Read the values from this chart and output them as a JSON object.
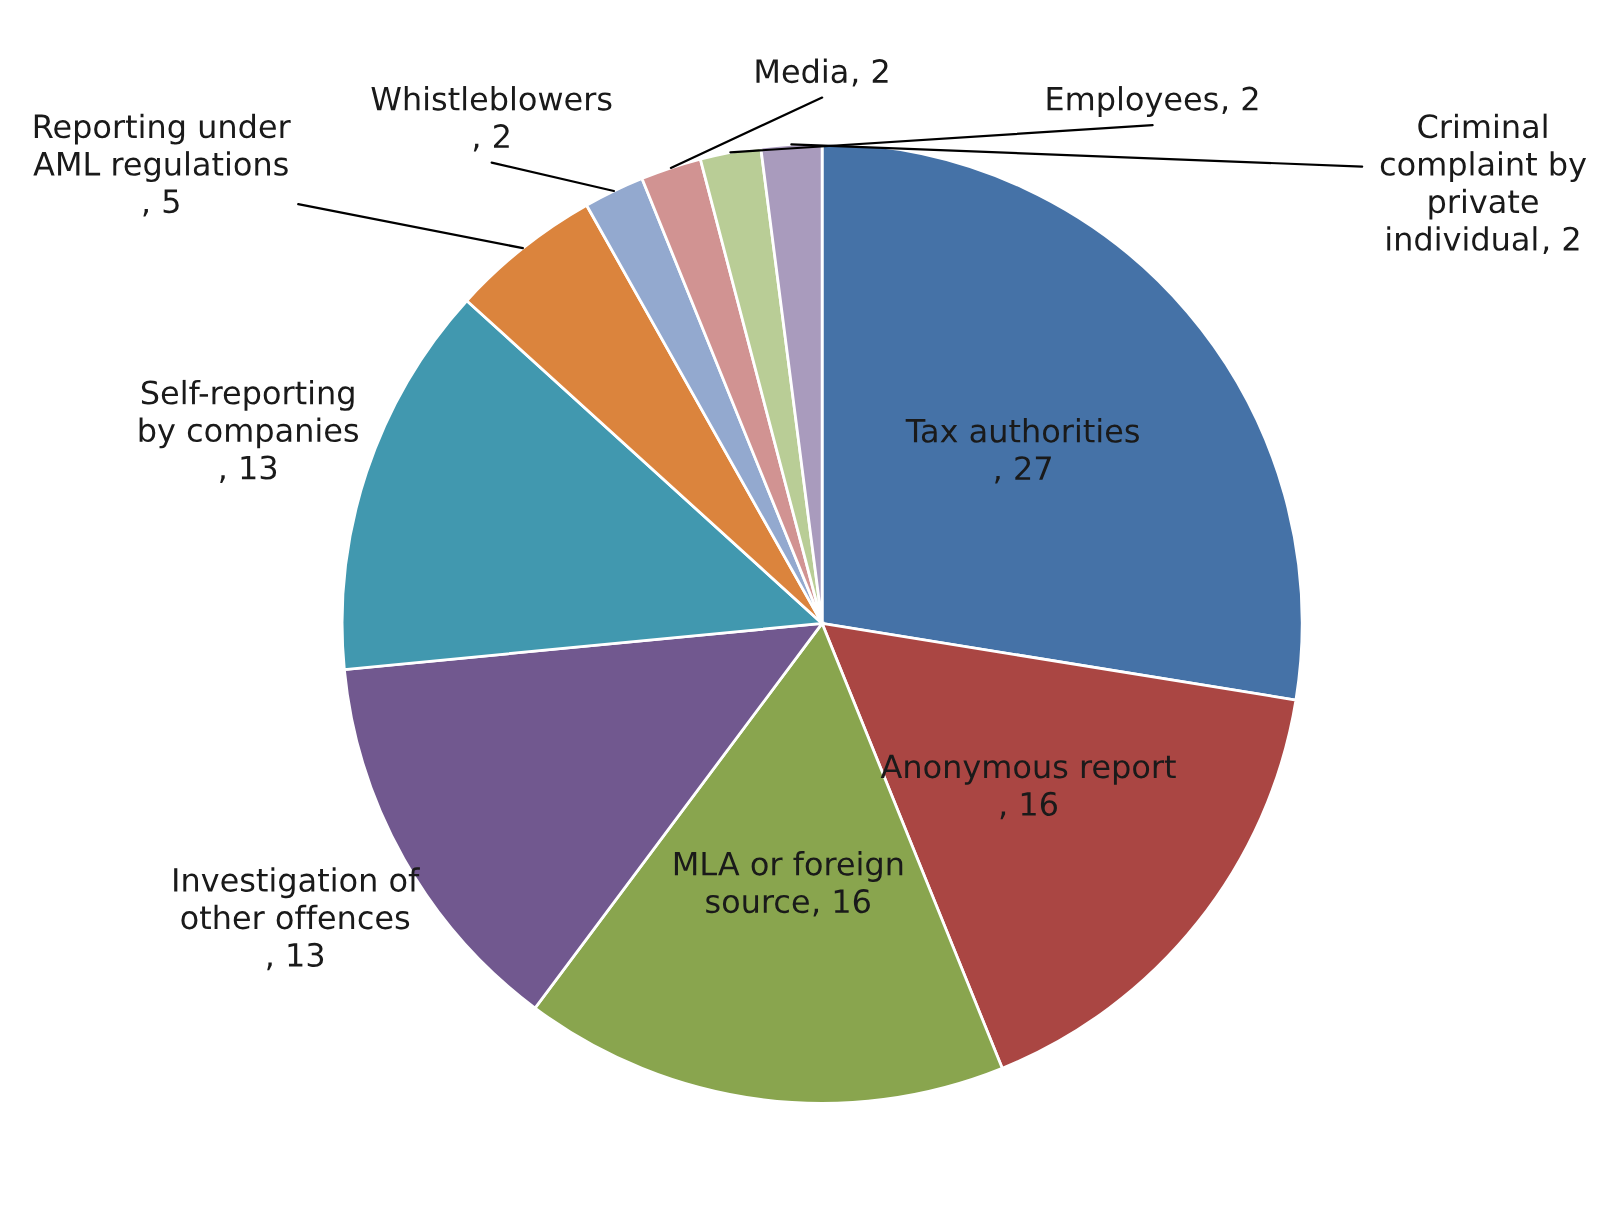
{
  "chart_data": {
    "type": "pie",
    "categories": [
      "Tax authorities",
      "Anonymous report",
      "MLA or foreign source",
      "Investigation of other offences",
      "Self-reporting by companies",
      "Reporting under AML regulations",
      "Whistleblowers",
      "Media",
      "Employees",
      "Criminal complaint by private individual"
    ],
    "values": [
      27,
      16,
      16,
      13,
      13,
      5,
      2,
      2,
      2,
      2
    ],
    "colors": [
      "#4572a7",
      "#aa4643",
      "#89a54e",
      "#71588f",
      "#4198af",
      "#db843d",
      "#93a9cf",
      "#d19392",
      "#b9cd96",
      "#a99bbd"
    ],
    "value_labels": [
      ", 27",
      ", 16",
      ", 16",
      ", 13",
      ", 13",
      ", 5",
      ", 2",
      ", 2",
      ", 2",
      ", 2"
    ]
  }
}
